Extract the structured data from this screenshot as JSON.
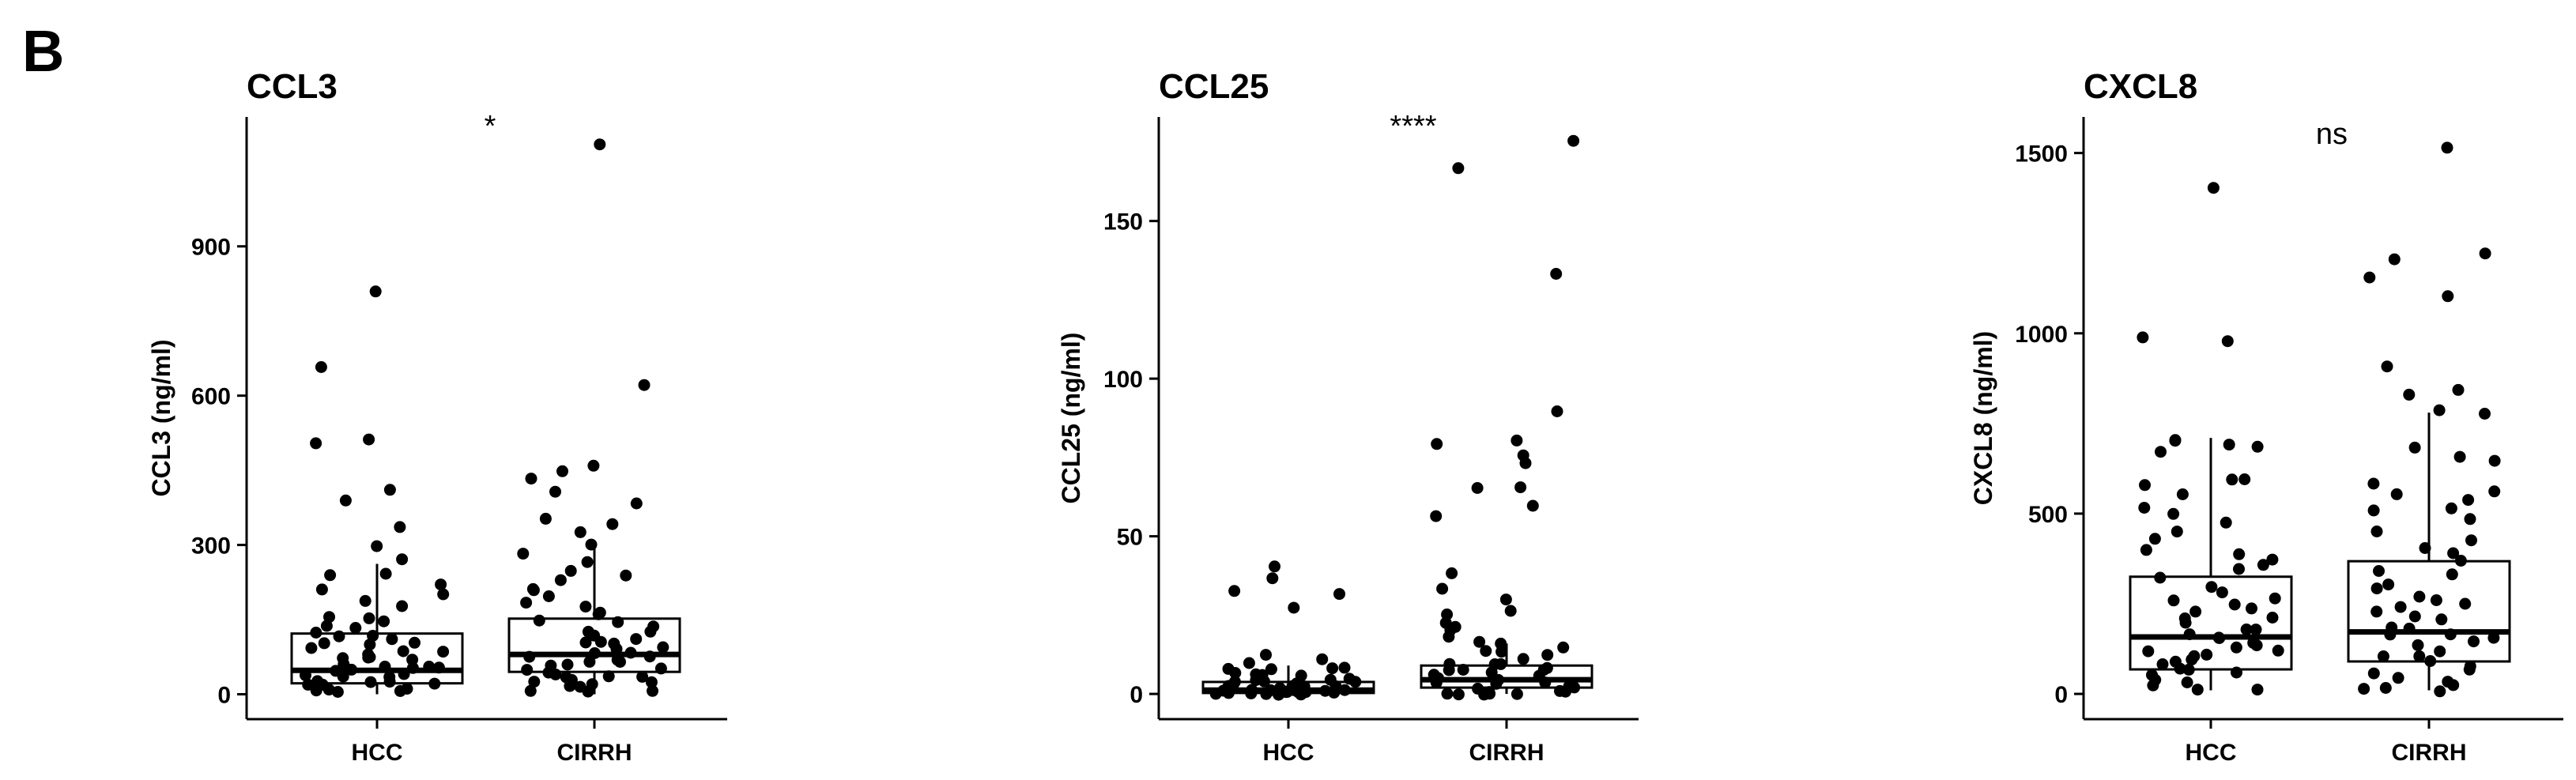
{
  "panel_label": "B",
  "chart_data": [
    {
      "type": "box",
      "title": "CCL3",
      "xlabel": "",
      "ylabel": "CCL3 (ng/ml)",
      "categories": [
        "HCC",
        "CIRRH"
      ],
      "yticks": [
        "0",
        "300",
        "600",
        "900"
      ],
      "ylim": [
        -50,
        1160
      ],
      "significance": "*",
      "boxes": [
        {
          "q1": 22,
          "median": 48,
          "q3": 122,
          "whisker_low": 0,
          "whisker_high": 262
        },
        {
          "q1": 45,
          "median": 80,
          "q3": 152,
          "whisker_low": 0,
          "whisker_high": 298
        }
      ],
      "points": [
        [
          810,
          655,
          512,
          508,
          410,
          392,
          332,
          295,
          268,
          242,
          235,
          225,
          210,
          198,
          188,
          175,
          160,
          150,
          145,
          140,
          132,
          128,
          120,
          115,
          110,
          105,
          100,
          96,
          92,
          88,
          84,
          80,
          77,
          74,
          70,
          66,
          63,
          60,
          57,
          54,
          51,
          48,
          46,
          43,
          40,
          37,
          34,
          31,
          28,
          25,
          22,
          19,
          16,
          13,
          10,
          8,
          5,
          3
        ],
        [
          1108,
          618,
          455,
          448,
          432,
          405,
          380,
          348,
          338,
          322,
          300,
          285,
          268,
          252,
          240,
          228,
          215,
          205,
          195,
          185,
          175,
          168,
          160,
          152,
          145,
          138,
          130,
          125,
          120,
          115,
          110,
          105,
          100,
          95,
          90,
          86,
          82,
          78,
          74,
          70,
          66,
          62,
          58,
          55,
          52,
          48,
          45,
          42,
          38,
          35,
          32,
          28,
          25,
          22,
          18,
          15,
          12,
          9,
          6,
          3
        ]
      ]
    },
    {
      "type": "box",
      "title": "CCL25",
      "xlabel": "",
      "ylabel": "CCL25 (ng/ml)",
      "categories": [
        "HCC",
        "CIRRH"
      ],
      "yticks": [
        "0",
        "50",
        "100",
        "150"
      ],
      "ylim": [
        -8,
        183
      ],
      "significance": "****",
      "boxes": [
        {
          "q1": 0.3,
          "median": 1.2,
          "q3": 3.8,
          "whisker_low": 0,
          "whisker_high": 9
        },
        {
          "q1": 2,
          "median": 4.5,
          "q3": 9,
          "whisker_low": 0,
          "whisker_high": 16
        }
      ],
      "points": [
        [
          40,
          36,
          33,
          31,
          27,
          12,
          11,
          10,
          9,
          8.5,
          8,
          7.5,
          7,
          6.5,
          6,
          5.5,
          5,
          4.8,
          4.5,
          4.2,
          4,
          3.7,
          3.4,
          3.1,
          2.8,
          2.5,
          2.2,
          2,
          1.8,
          1.6,
          1.4,
          1.2,
          1,
          0.9,
          0.8,
          0.7,
          0.6,
          0.5,
          0.4,
          0.3,
          0.2,
          0.1,
          0.05,
          0,
          0,
          0,
          0,
          0,
          0
        ],
        [
          176,
          166,
          134,
          90,
          81,
          79,
          75,
          73,
          66,
          65,
          60,
          56,
          38,
          33,
          30,
          27,
          25,
          22,
          21,
          20,
          18,
          17,
          16,
          15,
          14,
          13,
          12,
          11,
          10,
          9.5,
          9,
          8.5,
          8,
          7.5,
          7,
          6.5,
          6,
          5.5,
          5,
          4.5,
          4,
          3.5,
          3,
          2.5,
          2,
          1.5,
          1,
          0.8,
          0.5,
          0.3,
          0.1,
          0,
          0,
          0
        ]
      ]
    },
    {
      "type": "box",
      "title": "CXCL8",
      "xlabel": "",
      "ylabel": "CXCL8 (ng/ml)",
      "categories": [
        "HCC",
        "CIRRH"
      ],
      "yticks": [
        "0",
        "500",
        "1000",
        "1500"
      ],
      "ylim": [
        -70,
        1600
      ],
      "significance": "ns",
      "boxes": [
        {
          "q1": 68,
          "median": 158,
          "q3": 325,
          "whisker_low": 10,
          "whisker_high": 710
        },
        {
          "q1": 90,
          "median": 172,
          "q3": 368,
          "whisker_low": 10,
          "whisker_high": 780
        }
      ],
      "points": [
        [
          1400,
          995,
          975,
          710,
          705,
          690,
          680,
          665,
          600,
          588,
          575,
          560,
          510,
          500,
          470,
          450,
          430,
          400,
          390,
          370,
          360,
          340,
          320,
          300,
          285,
          270,
          255,
          245,
          235,
          225,
          215,
          205,
          195,
          185,
          175,
          168,
          160,
          152,
          145,
          138,
          130,
          122,
          115,
          108,
          100,
          92,
          85,
          78,
          70,
          62,
          55,
          48,
          40,
          32,
          25,
          18,
          12
        ],
        [
          1510,
          1222,
          1205,
          1150,
          1105,
          912,
          848,
          832,
          790,
          780,
          688,
          660,
          640,
          585,
          568,
          548,
          535,
          520,
          505,
          480,
          455,
          430,
          405,
          385,
          365,
          345,
          325,
          305,
          290,
          275,
          260,
          248,
          236,
          224,
          212,
          200,
          190,
          180,
          170,
          160,
          150,
          140,
          130,
          120,
          110,
          100,
          90,
          80,
          70,
          60,
          50,
          40,
          30,
          20,
          12,
          5
        ]
      ]
    }
  ]
}
